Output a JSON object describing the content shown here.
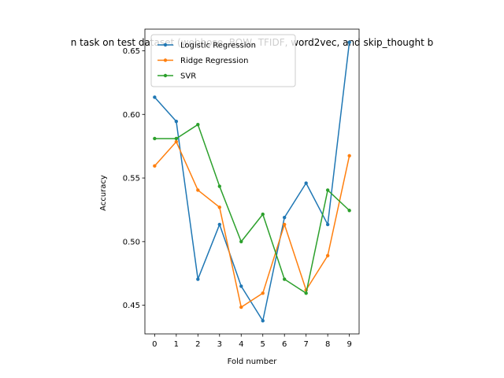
{
  "chart_data": {
    "type": "line",
    "title": "n task on test dataset (webhose, BOW, TFIDF, word2vec, and skip_thought b",
    "xlabel": "Fold number",
    "ylabel": "Accuracy",
    "x": [
      0,
      1,
      2,
      3,
      4,
      5,
      6,
      7,
      8,
      9
    ],
    "xticks": [
      "0",
      "1",
      "2",
      "3",
      "4",
      "5",
      "6",
      "7",
      "8",
      "9"
    ],
    "yticks": [
      "0.45",
      "0.50",
      "0.55",
      "0.60",
      "0.65"
    ],
    "ytick_values": [
      0.45,
      0.5,
      0.55,
      0.6,
      0.65
    ],
    "xlim": [
      -0.45,
      9.45
    ],
    "ylim": [
      0.4275,
      0.667
    ],
    "grid": false,
    "legend_position": "upper-left",
    "series": [
      {
        "name": "Logistic Regression",
        "color": "#1f77b4",
        "values": [
          0.6135,
          0.5945,
          0.4705,
          0.5135,
          0.465,
          0.4378,
          0.519,
          0.546,
          0.5135,
          0.6567
        ]
      },
      {
        "name": "Ridge Regression",
        "color": "#ff7f0e",
        "values": [
          0.5595,
          0.5785,
          0.5405,
          0.527,
          0.4485,
          0.4595,
          0.5135,
          0.462,
          0.489,
          0.5675
        ]
      },
      {
        "name": "SVR",
        "color": "#2ca02c",
        "values": [
          0.581,
          0.581,
          0.592,
          0.5435,
          0.5,
          0.5215,
          0.4705,
          0.4595,
          0.5405,
          0.5245
        ]
      }
    ]
  }
}
